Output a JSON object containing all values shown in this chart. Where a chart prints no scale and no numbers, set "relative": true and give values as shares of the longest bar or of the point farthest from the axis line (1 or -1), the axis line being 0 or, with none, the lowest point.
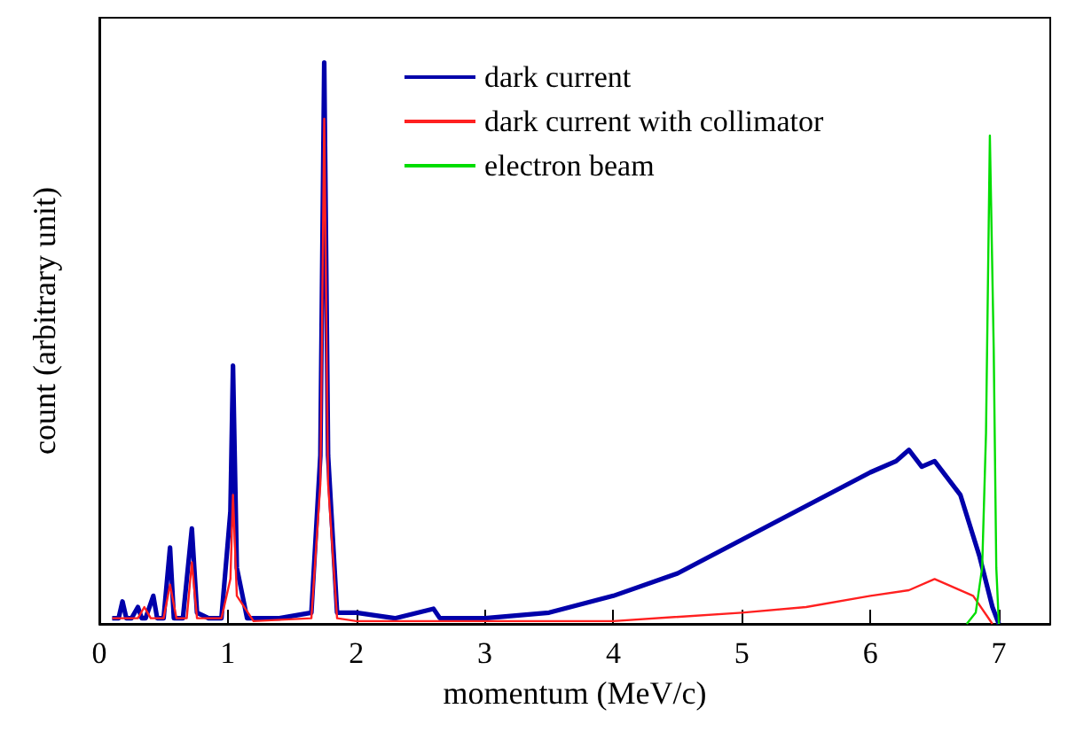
{
  "chart_data": {
    "type": "line",
    "xlabel": "momentum (MeV/c)",
    "ylabel": "count (arbitrary unit)",
    "relative": true,
    "xlim": [
      0,
      7.4
    ],
    "xticks": [
      0,
      1,
      2,
      3,
      4,
      5,
      6,
      7
    ],
    "legend": "top",
    "grid": false,
    "marker": "none",
    "line_style": "solid",
    "series": [
      {
        "name": "dark current",
        "color": "#0000aa",
        "x": [
          0.1,
          0.15,
          0.18,
          0.21,
          0.25,
          0.3,
          0.33,
          0.36,
          0.42,
          0.45,
          0.5,
          0.55,
          0.58,
          0.65,
          0.72,
          0.76,
          0.85,
          0.95,
          1.02,
          1.04,
          1.07,
          1.15,
          1.4,
          1.65,
          1.72,
          1.75,
          1.78,
          1.85,
          2.0,
          2.3,
          2.6,
          2.65,
          3.0,
          3.5,
          4.0,
          4.5,
          5.0,
          5.5,
          6.0,
          6.2,
          6.3,
          6.4,
          6.5,
          6.7,
          6.85,
          6.95,
          7.0
        ],
        "values": [
          0.01,
          0.01,
          0.04,
          0.01,
          0.01,
          0.03,
          0.01,
          0.01,
          0.05,
          0.01,
          0.01,
          0.136,
          0.01,
          0.01,
          0.17,
          0.02,
          0.01,
          0.01,
          0.2,
          0.46,
          0.1,
          0.01,
          0.01,
          0.02,
          0.3,
          1.0,
          0.3,
          0.02,
          0.02,
          0.01,
          0.027,
          0.01,
          0.01,
          0.02,
          0.05,
          0.09,
          0.15,
          0.21,
          0.27,
          0.29,
          0.31,
          0.28,
          0.29,
          0.23,
          0.12,
          0.03,
          0
        ]
      },
      {
        "name": "dark current with collimator",
        "color": "#ff2020",
        "x": [
          0.1,
          0.3,
          0.35,
          0.4,
          0.5,
          0.55,
          0.6,
          0.68,
          0.72,
          0.76,
          0.95,
          1.02,
          1.04,
          1.07,
          1.2,
          1.65,
          1.72,
          1.75,
          1.78,
          1.85,
          2.0,
          3.0,
          4.0,
          5.0,
          5.5,
          6.0,
          6.3,
          6.5,
          6.8,
          6.95
        ],
        "values": [
          0.01,
          0.01,
          0.03,
          0.01,
          0.01,
          0.07,
          0.01,
          0.01,
          0.11,
          0.01,
          0.01,
          0.08,
          0.23,
          0.05,
          0.005,
          0.01,
          0.25,
          0.9,
          0.25,
          0.01,
          0.005,
          0.005,
          0.005,
          0.02,
          0.03,
          0.05,
          0.06,
          0.08,
          0.05,
          0
        ]
      },
      {
        "name": "electron beam",
        "color": "#00dd00",
        "x": [
          6.75,
          6.82,
          6.87,
          6.9,
          6.93,
          6.96,
          6.98,
          7.0
        ],
        "values": [
          0,
          0.02,
          0.1,
          0.34,
          0.87,
          0.49,
          0.1,
          0
        ]
      }
    ]
  }
}
